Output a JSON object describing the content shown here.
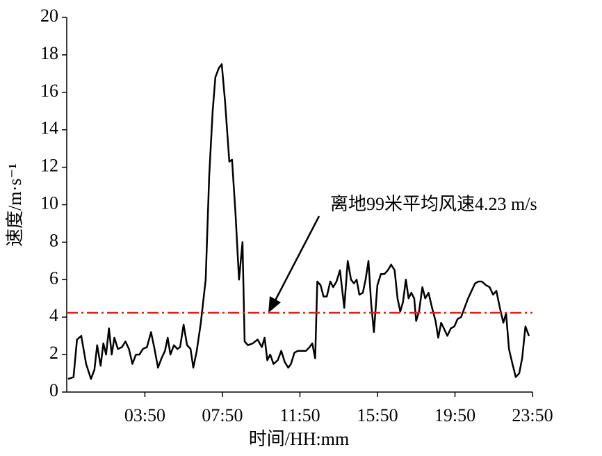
{
  "chart_data": {
    "type": "line",
    "x_label": "时间/HH:mm",
    "y_label": "速度/m·s⁻¹",
    "color": "#000000",
    "x": [
      -0.13,
      0.15,
      0.33,
      0.55,
      0.8,
      1.05,
      1.23,
      1.37,
      1.55,
      1.69,
      1.83,
      1.98,
      2.12,
      2.26,
      2.44,
      2.65,
      2.83,
      3.01,
      3.19,
      3.37,
      3.55,
      3.73,
      3.94,
      4.15,
      4.33,
      4.51,
      4.69,
      4.87,
      5.01,
      5.15,
      5.33,
      5.51,
      5.65,
      5.83,
      6.01,
      6.19,
      6.33,
      6.51,
      6.72,
      6.97,
      7.15,
      7.33,
      7.47,
      7.65,
      7.8,
      7.97,
      8.19,
      8.33,
      8.51,
      8.69,
      8.87,
      8.98,
      9.15,
      9.4,
      9.65,
      9.87,
      10.01,
      10.15,
      10.3,
      10.47,
      10.69,
      10.87,
      11.05,
      11.23,
      11.37,
      11.55,
      11.73,
      11.94,
      12.15,
      12.33,
      12.47,
      12.62,
      12.73,
      12.9,
      13.05,
      13.22,
      13.4,
      13.55,
      13.72,
      13.9,
      14.12,
      14.3,
      14.47,
      14.62,
      14.76,
      14.9,
      15.08,
      15.22,
      15.37,
      15.51,
      15.65,
      15.83,
      16.01,
      16.19,
      16.37,
      16.54,
      16.72,
      16.87,
      17.01,
      17.15,
      17.3,
      17.44,
      17.58,
      17.73,
      17.83,
      17.98,
      18.15,
      18.3,
      18.47,
      18.65,
      18.83,
      18.97,
      19.12,
      19.26,
      19.44,
      19.62,
      19.8,
      19.97,
      20.15,
      20.33,
      20.51,
      20.69,
      20.87,
      21.04,
      21.22,
      21.44,
      21.62,
      21.8,
      21.97,
      22.15,
      22.33,
      22.47,
      22.62,
      22.8,
      22.97,
      23.15,
      23.3,
      23.47,
      23.65
    ],
    "values": [
      0.7,
      0.8,
      2.8,
      3.0,
      1.5,
      0.7,
      1.2,
      2.5,
      1.4,
      2.6,
      2.0,
      3.4,
      2.0,
      2.9,
      2.3,
      2.4,
      2.7,
      2.3,
      1.5,
      2.0,
      2.0,
      2.3,
      2.4,
      3.2,
      2.3,
      1.3,
      1.8,
      2.2,
      2.9,
      2.0,
      2.5,
      2.3,
      2.4,
      3.6,
      2.5,
      2.3,
      1.3,
      2.2,
      3.7,
      6.0,
      11.5,
      15.0,
      16.8,
      17.3,
      17.5,
      15.5,
      12.3,
      12.4,
      9.5,
      6.0,
      8.0,
      2.7,
      2.5,
      2.6,
      2.8,
      2.4,
      2.9,
      1.7,
      2.0,
      1.5,
      1.7,
      2.2,
      1.6,
      1.3,
      1.5,
      2.1,
      2.2,
      2.2,
      2.2,
      2.4,
      2.6,
      1.8,
      5.9,
      5.7,
      5.1,
      5.1,
      5.9,
      5.6,
      5.9,
      6.5,
      4.5,
      7.0,
      6.0,
      5.8,
      6.0,
      5.2,
      5.3,
      6.0,
      7.0,
      4.7,
      3.2,
      5.7,
      6.3,
      6.3,
      6.5,
      6.8,
      6.5,
      5.0,
      4.3,
      4.8,
      6.0,
      5.0,
      5.3,
      5.0,
      3.8,
      4.3,
      5.6,
      5.0,
      5.3,
      4.5,
      3.8,
      2.9,
      3.7,
      3.4,
      3.0,
      3.4,
      3.5,
      3.9,
      4.0,
      4.5,
      5.0,
      5.4,
      5.8,
      5.9,
      5.9,
      5.7,
      5.6,
      5.2,
      5.4,
      4.5,
      3.7,
      4.2,
      2.3,
      1.5,
      0.8,
      1.0,
      1.8,
      3.5,
      3.0
    ],
    "xlim": [
      -0.2,
      23.8333
    ],
    "xticks": [
      {
        "value": 3.8333,
        "label": "03:50"
      },
      {
        "value": 7.8333,
        "label": "07:50"
      },
      {
        "value": 11.8333,
        "label": "11:50"
      },
      {
        "value": 15.8333,
        "label": "15:50"
      },
      {
        "value": 19.8333,
        "label": "19:50"
      },
      {
        "value": 23.8333,
        "label": "23:50"
      }
    ],
    "ylim": [
      0,
      20
    ],
    "yticks": [
      0,
      2,
      4,
      6,
      8,
      10,
      12,
      14,
      16,
      18,
      20
    ],
    "reference_line": {
      "value": 4.23,
      "color": "#e0201b"
    },
    "annotation": "离地99米平均风速4.23 m/s"
  }
}
